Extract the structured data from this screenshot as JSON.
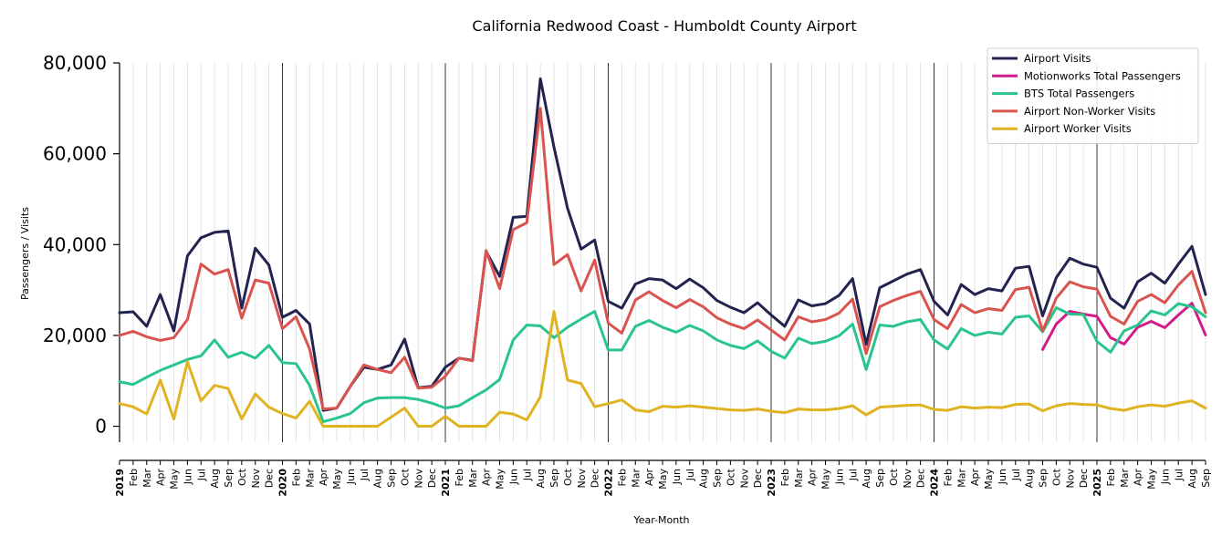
{
  "chart_data": {
    "type": "line",
    "title": "California Redwood Coast - Humboldt County Airport",
    "xlabel": "Year-Month",
    "ylabel": "Passengers / Visits",
    "ylim": [
      -3500,
      80000
    ],
    "yticks": [
      0,
      20000,
      40000,
      60000,
      80000
    ],
    "ytick_labels": [
      "0",
      "20,000",
      "40,000",
      "60,000",
      "80,000"
    ],
    "grid": "vertical",
    "legend_position": "top-right",
    "x_start": "2019-01",
    "x_labels": [
      "2019",
      "Feb",
      "Mar",
      "Apr",
      "May",
      "Jun",
      "Jul",
      "Aug",
      "Sep",
      "Oct",
      "Nov",
      "Dec",
      "2020",
      "Feb",
      "Mar",
      "Apr",
      "May",
      "Jun",
      "Jul",
      "Aug",
      "Sep",
      "Oct",
      "Nov",
      "Dec",
      "2021",
      "Feb",
      "Mar",
      "Apr",
      "May",
      "Jun",
      "Jul",
      "Aug",
      "Sep",
      "Oct",
      "Nov",
      "Dec",
      "2022",
      "Feb",
      "Mar",
      "Apr",
      "May",
      "Jun",
      "Jul",
      "Aug",
      "Sep",
      "Oct",
      "Nov",
      "Dec",
      "2023",
      "Feb",
      "Mar",
      "Apr",
      "May",
      "Jun",
      "Jul",
      "Aug",
      "Sep",
      "Oct",
      "Nov",
      "Dec",
      "2024",
      "Feb",
      "Mar",
      "Apr",
      "May",
      "Jun",
      "Jul",
      "Aug",
      "Sep",
      "Oct",
      "Nov",
      "Dec",
      "2025",
      "Feb",
      "Mar",
      "Apr",
      "May",
      "Jun",
      "Jul",
      "Aug",
      "Sep"
    ],
    "year_labels": [
      "2019",
      "2020",
      "2021",
      "2022",
      "2023",
      "2024",
      "2025"
    ],
    "series": [
      {
        "name": "Airport Visits",
        "color": "#22244f",
        "values": [
          25000,
          25200,
          22000,
          29000,
          21000,
          37500,
          41500,
          42700,
          43000,
          26000,
          39200,
          35500,
          24000,
          25500,
          22500,
          3500,
          4000,
          8800,
          13000,
          12500,
          13500,
          19200,
          8500,
          8800,
          13000,
          15000,
          14500,
          38500,
          33000,
          46000,
          46200,
          76500,
          61500,
          48000,
          39000,
          41000,
          27500,
          26000,
          31300,
          32500,
          32200,
          30300,
          32400,
          30500,
          27700,
          26200,
          25000,
          27200,
          24500,
          22000,
          27800,
          26500,
          27000,
          28800,
          32500,
          18000,
          30500,
          32000,
          33500,
          34500,
          27500,
          24500,
          31200,
          29000,
          30300,
          29800,
          34800,
          35200,
          24300,
          32700,
          37000,
          35700,
          35000,
          28200,
          26000,
          31800,
          33700,
          31500,
          35700,
          39600,
          29000
        ]
      },
      {
        "name": "Motionworks Total Passengers",
        "color": "#d11d8a",
        "values": [
          null,
          null,
          null,
          null,
          null,
          null,
          null,
          null,
          null,
          null,
          null,
          null,
          null,
          null,
          null,
          null,
          null,
          null,
          null,
          null,
          null,
          null,
          null,
          null,
          null,
          null,
          null,
          null,
          null,
          null,
          null,
          null,
          null,
          null,
          null,
          null,
          null,
          null,
          null,
          null,
          null,
          null,
          null,
          null,
          null,
          null,
          null,
          null,
          null,
          null,
          null,
          null,
          null,
          null,
          null,
          null,
          null,
          null,
          null,
          null,
          null,
          null,
          null,
          null,
          null,
          null,
          null,
          null,
          16900,
          22500,
          25300,
          24700,
          24200,
          19500,
          18100,
          21800,
          23100,
          21700,
          24500,
          27100,
          20100
        ]
      },
      {
        "name": "BTS Total Passengers",
        "color": "#2ac48e",
        "values": [
          9800,
          9200,
          10800,
          12300,
          13500,
          14700,
          15500,
          19000,
          15200,
          16300,
          15000,
          17800,
          14000,
          13800,
          9000,
          1000,
          1800,
          2800,
          5200,
          6200,
          6300,
          6300,
          5900,
          5100,
          4000,
          4500,
          6300,
          8000,
          10300,
          19000,
          22300,
          22100,
          19500,
          21800,
          23600,
          25300,
          16800,
          16800,
          22000,
          23300,
          21800,
          20700,
          22200,
          21000,
          19000,
          17800,
          17100,
          18800,
          16500,
          15000,
          19400,
          18200,
          18700,
          19900,
          22500,
          12500,
          22300,
          22000,
          23000,
          23500,
          19000,
          17000,
          21500,
          20000,
          20700,
          20300,
          24000,
          24300,
          20800,
          26100,
          24700,
          24600,
          18700,
          16300,
          21000,
          22300,
          25400,
          24500,
          27000,
          26300,
          24100
        ]
      },
      {
        "name": "Airport Non-Worker Visits",
        "color": "#d9534f",
        "values": [
          20000,
          20900,
          19700,
          18900,
          19500,
          23500,
          35700,
          33500,
          34500,
          23800,
          32200,
          31500,
          21500,
          24100,
          17000,
          3800,
          4000,
          8800,
          13500,
          12500,
          11800,
          15200,
          8400,
          8600,
          11000,
          15000,
          14400,
          38700,
          30300,
          43300,
          44800,
          70000,
          35600,
          37800,
          29800,
          36600,
          22700,
          20500,
          27800,
          29600,
          27700,
          26100,
          27900,
          26300,
          23900,
          22500,
          21500,
          23400,
          21200,
          19000,
          24100,
          23000,
          23500,
          24900,
          28000,
          16000,
          26300,
          27700,
          28800,
          29700,
          23500,
          21500,
          26800,
          25000,
          25900,
          25500,
          30100,
          30600,
          21000,
          28200,
          31800,
          30700,
          30200,
          24200,
          22500,
          27500,
          29000,
          27200,
          31100,
          34100,
          25000
        ]
      },
      {
        "name": "Airport Worker Visits",
        "color": "#dfb321",
        "values": [
          5000,
          4300,
          2700,
          10200,
          1600,
          14200,
          5600,
          9000,
          8300,
          1600,
          7100,
          4200,
          2800,
          1800,
          5500,
          0,
          0,
          0,
          0,
          0,
          2000,
          4000,
          0,
          0,
          2200,
          0,
          0,
          0,
          3100,
          2700,
          1400,
          6500,
          25300,
          10200,
          9400,
          4300,
          5000,
          5800,
          3600,
          3200,
          4400,
          4200,
          4500,
          4200,
          3900,
          3600,
          3500,
          3800,
          3300,
          3000,
          3800,
          3600,
          3600,
          3900,
          4500,
          2500,
          4200,
          4400,
          4600,
          4700,
          3700,
          3500,
          4300,
          4000,
          4200,
          4100,
          4800,
          4900,
          3400,
          4500,
          5000,
          4800,
          4700,
          3900,
          3500,
          4300,
          4700,
          4400,
          5100,
          5600,
          4000
        ]
      }
    ]
  }
}
